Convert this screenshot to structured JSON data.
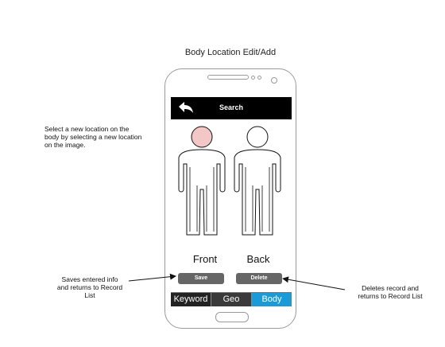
{
  "diagram": {
    "title": "Body Location Edit/Add"
  },
  "annotations": {
    "select_location": "Select a new location on the\nbody by selecting a new location\non the image.",
    "save_note": "Saves entered info\nand returns to Record\nList",
    "delete_note": "Deletes record and\nreturns to Record List"
  },
  "screen": {
    "header": {
      "back_icon": "back-arrow-icon",
      "title": "Search"
    },
    "figures": {
      "front_label": "Front",
      "back_label": "Back",
      "selected_region": "head-front",
      "selected_color": "#f4c7c7"
    },
    "buttons": {
      "save_label": "Save",
      "delete_label": "Delete"
    },
    "tabs": [
      {
        "label": "Keyword",
        "active": false
      },
      {
        "label": "Geo",
        "active": false
      },
      {
        "label": "Body",
        "active": true
      }
    ],
    "active_tab_color": "#1a9ad6"
  }
}
